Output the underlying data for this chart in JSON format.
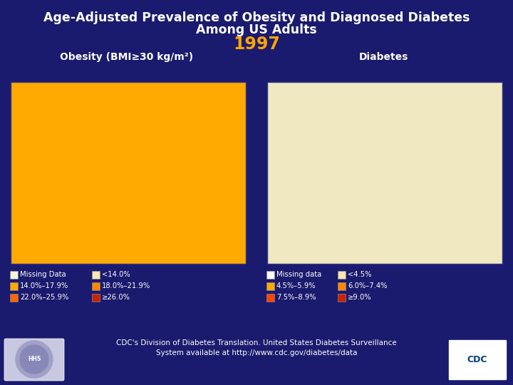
{
  "bg_color": "#1a1a6e",
  "title_line1": "Age-Adjusted Prevalence of Obesity and Diagnosed Diabetes",
  "title_line2": "Among US Adults",
  "year": "1997",
  "year_color": "#ffa500",
  "title_color": "#ffffff",
  "map_title_color": "#ffffff",
  "obesity_title": "Obesity (BMI≥30 kg/m²)",
  "diabetes_title": "Diabetes",
  "obesity_colors": {
    "WA": "#ffaa00",
    "OR": "#ff6600",
    "CA": "#ffaa00",
    "ID": "#ffaa00",
    "NV": "#f0e8c0",
    "AZ": "#f0e8c0",
    "MT": "#ffaa00",
    "WY": "#ffaa00",
    "UT": "#ffaa00",
    "CO": "#f0e8c0",
    "NM": "#ffaa00",
    "ND": "#ffaa00",
    "SD": "#ffaa00",
    "NE": "#ffaa00",
    "KS": "#ffaa00",
    "MN": "#ffaa00",
    "IA": "#ffaa00",
    "MO": "#ffaa00",
    "WI": "#ffaa00",
    "IL": "#ffaa00",
    "IN": "#ffaa00",
    "OH": "#ffaa00",
    "MI": "#ffaa00",
    "PA": "#ffaa00",
    "NY": "#ffaa00",
    "VT": "#ffaa00",
    "NH": "#ffaa00",
    "MA": "#ffaa00",
    "RI": "#ffaa00",
    "CT": "#ffaa00",
    "NJ": "#ffaa00",
    "DE": "#ffaa00",
    "MD": "#ffaa00",
    "DC": "#ffaa00",
    "TX": "#ffaa00",
    "OK": "#ff8800",
    "AR": "#ffaa00",
    "LA": "#ffaa00",
    "MS": "#ffaa00",
    "AL": "#ffaa00",
    "TN": "#ffaa00",
    "KY": "#ffaa00",
    "GA": "#ffaa00",
    "FL": "#ffaa00",
    "SC": "#ffaa00",
    "NC": "#ffaa00",
    "VA": "#ffaa00",
    "WV": "#ffaa00",
    "ME": "#ffaa00",
    "AK": "#ff8800",
    "HI": "#f0e8c0"
  },
  "diabetes_colors": {
    "WA": "#f0e8c0",
    "OR": "#ffaa00",
    "CA": "#ffaa00",
    "ID": "#f0e8c0",
    "NV": "#f0e8c0",
    "AZ": "#f0e8c0",
    "MT": "#f0e8c0",
    "WY": "#f0e8c0",
    "UT": "#f0e8c0",
    "CO": "#f0e8c0",
    "NM": "#ffaa00",
    "ND": "#f0e8c0",
    "SD": "#f0e8c0",
    "NE": "#f0e8c0",
    "KS": "#f0e8c0",
    "MN": "#f0e8c0",
    "IA": "#f0e8c0",
    "MO": "#ffaa00",
    "WI": "#f0e8c0",
    "IL": "#ffaa00",
    "IN": "#ffaa00",
    "OH": "#ffaa00",
    "MI": "#ffaa00",
    "PA": "#ffaa00",
    "NY": "#ffaa00",
    "VT": "#f0e8c0",
    "NH": "#f0e8c0",
    "MA": "#ffaa00",
    "RI": "#ffaa00",
    "CT": "#ffaa00",
    "NJ": "#ffaa00",
    "DE": "#ffaa00",
    "MD": "#ffaa00",
    "DC": "#ffaa00",
    "TX": "#ffaa00",
    "OK": "#ffaa00",
    "AR": "#ffaa00",
    "LA": "#ffaa00",
    "MS": "#ffaa00",
    "AL": "#ffaa00",
    "TN": "#f0e8c0",
    "KY": "#ffaa00",
    "GA": "#ffaa00",
    "FL": "#ffaa00",
    "SC": "#ffaa00",
    "NC": "#ffaa00",
    "VA": "#ffaa00",
    "WV": "#ffaa00",
    "ME": "#f0e8c0",
    "AK": "#ffaa00",
    "HI": "#ffaa00"
  },
  "obesity_legend": [
    {
      "label": "Missing Data",
      "color": "#f5f5dc"
    },
    {
      "label": "14.0%–17.9%",
      "color": "#ffaa00"
    },
    {
      "label": "22.0%–25.9%",
      "color": "#ff6600"
    },
    {
      "label": "<14.0%",
      "color": "#ffe4b5"
    },
    {
      "label": "18.0%–21.9%",
      "color": "#ff8800"
    },
    {
      "label": "≥26.0%",
      "color": "#cc2200"
    }
  ],
  "diabetes_legend": [
    {
      "label": "Missing data",
      "color": "#ffffff"
    },
    {
      "label": "4.5%–5.9%",
      "color": "#ffaa00"
    },
    {
      "label": "7.5%–8.9%",
      "color": "#ff4400"
    },
    {
      "label": "<4.5%",
      "color": "#ffe4b5"
    },
    {
      "label": "6.0%–7.4%",
      "color": "#ff8800"
    },
    {
      "label": "≥9.0%",
      "color": "#cc2200"
    }
  ],
  "footer_text": "CDC's Division of Diabetes Translation. United States Diabetes Surveillance\nSystem available at http://www.cdc.gov/diabetes/data",
  "footer_color": "#ffffff"
}
